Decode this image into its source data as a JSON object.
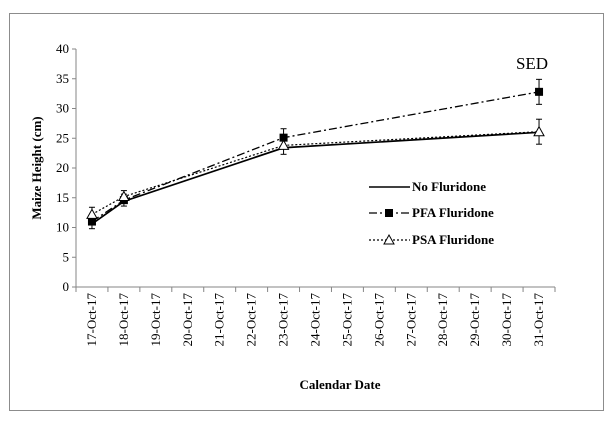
{
  "chart_data": {
    "type": "line",
    "xlabel": "Calendar Date",
    "ylabel": "Maize Height (cm)",
    "ylim": [
      0,
      40
    ],
    "yticks": [
      0,
      5,
      10,
      15,
      20,
      25,
      30,
      35,
      40
    ],
    "categories": [
      "17-Oct-17",
      "18-Oct-17",
      "19-Oct-17",
      "20-Oct-17",
      "21-Oct-17",
      "22-Oct-17",
      "23-Oct-17",
      "24-Oct-17",
      "25-Oct-17",
      "26-Oct-17",
      "27-Oct-17",
      "28-Oct-17",
      "29-Oct-17",
      "30-Oct-17",
      "31-Oct-17"
    ],
    "grid": false,
    "legend_position": "right-middle",
    "annotation": "SED",
    "series": [
      {
        "name": "No Fluridone",
        "line_style": "solid",
        "marker": "none",
        "color": "#000000",
        "points": [
          {
            "x": "17-Oct-17",
            "y": 10.6
          },
          {
            "x": "18-Oct-17",
            "y": 14.4
          },
          {
            "x": "23-Oct-17",
            "y": 23.4
          },
          {
            "x": "31-Oct-17",
            "y": 26.0
          }
        ]
      },
      {
        "name": "PFA Fluridone",
        "line_style": "dash-dot",
        "marker": "filled-square",
        "color": "#000000",
        "points": [
          {
            "x": "17-Oct-17",
            "y": 11.0,
            "err": 1.2
          },
          {
            "x": "18-Oct-17",
            "y": 14.6,
            "err": 1.0
          },
          {
            "x": "23-Oct-17",
            "y": 25.1,
            "err": 1.5
          },
          {
            "x": "31-Oct-17",
            "y": 32.8,
            "err": 2.1
          }
        ]
      },
      {
        "name": "PSA Fluridone",
        "line_style": "dotted",
        "marker": "open-triangle",
        "color": "#000000",
        "points": [
          {
            "x": "17-Oct-17",
            "y": 12.2,
            "err": 1.2
          },
          {
            "x": "18-Oct-17",
            "y": 15.2,
            "err": 1.0
          },
          {
            "x": "23-Oct-17",
            "y": 23.8,
            "err": 1.5
          },
          {
            "x": "31-Oct-17",
            "y": 26.1,
            "err": 2.1
          }
        ]
      }
    ]
  }
}
